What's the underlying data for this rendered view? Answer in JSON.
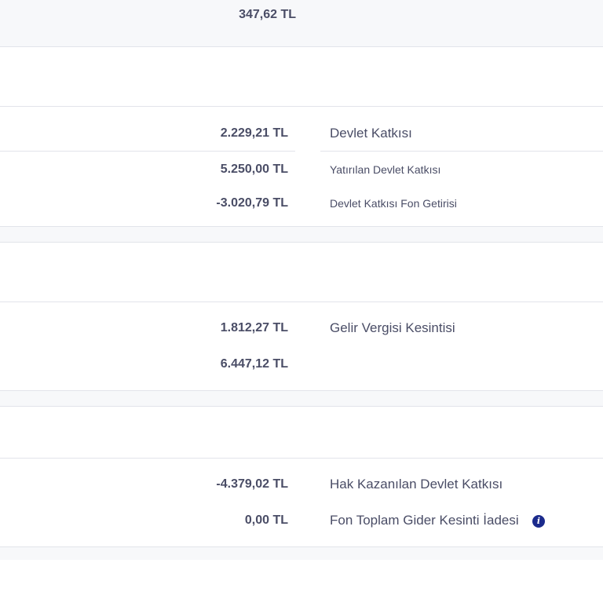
{
  "top_row": {
    "amount": "347,62 TL"
  },
  "devlet_katkisi": {
    "main": {
      "amount": "2.229,21 TL",
      "label": "Devlet Katkısı"
    },
    "sub": [
      {
        "amount": "5.250,00 TL",
        "label": "Yatırılan Devlet Katkısı"
      },
      {
        "amount": "-3.020,79 TL",
        "label": "Devlet Katkısı Fon Getirisi"
      }
    ]
  },
  "gelir_vergisi": {
    "main": {
      "amount": "1.812,27 TL",
      "label": "Gelir Vergisi Kesintisi"
    },
    "second": {
      "amount": "6.447,12 TL"
    }
  },
  "hak_kazanilan": {
    "main": {
      "amount": "-4.379,02 TL",
      "label": "Hak Kazanılan Devlet Katkısı"
    },
    "second": {
      "amount": "0,00 TL",
      "label": "Fon Toplam Gider Kesinti İadesi",
      "icon": "info-icon"
    }
  },
  "colors": {
    "text": "#4a4d66",
    "info_icon": "#1b2a8c",
    "divider": "#e2e4ea",
    "band": "#f7f8fa"
  }
}
